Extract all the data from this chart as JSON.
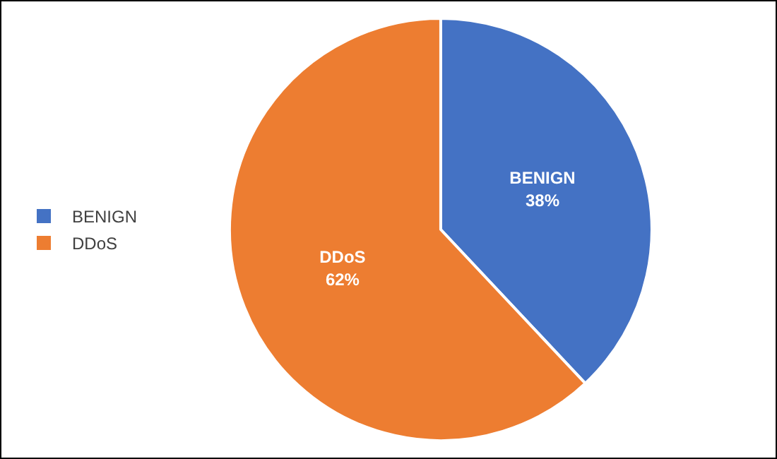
{
  "chart_data": {
    "type": "pie",
    "categories": [
      "BENIGN",
      "DDoS"
    ],
    "values": [
      38,
      62
    ],
    "colors": [
      "#4472c4",
      "#ed7d31"
    ],
    "value_labels": [
      "38%",
      "62%"
    ],
    "legend": "left"
  }
}
